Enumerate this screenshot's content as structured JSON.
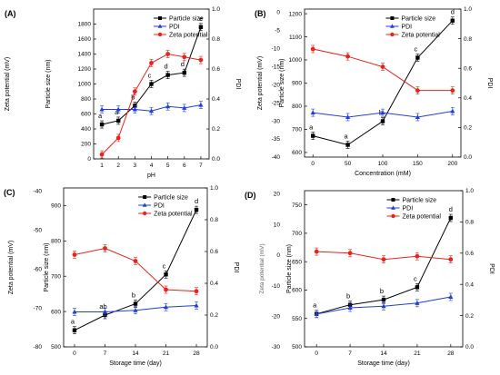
{
  "chart_data": [
    {
      "type": "line",
      "panel_label": "(A)",
      "xlabel": "pH",
      "ylabel_outer": "Zeta potential (mV)",
      "ylabel_inner": "Particle size (nm)",
      "ylabel_right": "PDI",
      "x": [
        1,
        2,
        3,
        4,
        5,
        6,
        7
      ],
      "xlim": [
        0.5,
        7.5
      ],
      "xticks": [
        "1",
        "2",
        "3",
        "4",
        "5",
        "6",
        "7"
      ],
      "left_axis": {
        "lim": [
          0,
          2000
        ],
        "ticks": [
          "0",
          "200",
          "400",
          "600",
          "800",
          "1000",
          "1200",
          "1400",
          "1600",
          "1800"
        ],
        "tick_values": [
          0,
          200,
          400,
          600,
          800,
          1000,
          1200,
          1400,
          1600,
          1800
        ]
      },
      "right_axis": {
        "lim": [
          0,
          1.0
        ],
        "ticks": [
          "0.0",
          "0.2",
          "0.4",
          "0.6",
          "0.8",
          "1.0"
        ],
        "tick_values": [
          0,
          0.2,
          0.4,
          0.6,
          0.8,
          1.0
        ]
      },
      "series": [
        {
          "name": "Particle size",
          "color": "#000000",
          "marker": "square",
          "axis": "left",
          "values": [
            460,
            510,
            710,
            1000,
            1120,
            1150,
            1760
          ],
          "letters": [
            "a",
            "a",
            "b",
            "c",
            "d",
            "d",
            "e"
          ]
        },
        {
          "name": "PDI",
          "color": "#1f3fd6",
          "marker": "triangle",
          "axis": "right",
          "values": [
            0.33,
            0.33,
            0.33,
            0.32,
            0.35,
            0.34,
            0.36
          ]
        },
        {
          "name": "Zeta potential",
          "color": "#e8231c",
          "marker": "circle",
          "axis": "right",
          "values": [
            0.03,
            0.14,
            0.45,
            0.64,
            0.7,
            0.68,
            0.66
          ]
        }
      ],
      "legend_placement": "top-center"
    },
    {
      "type": "line",
      "panel_label": "(B)",
      "xlabel": "Concentration (mM)",
      "ylabel_outer": "Zeta potential (mV)",
      "ylabel_inner": "Particle size (nm)",
      "ylabel_right": "PDI",
      "x": [
        0,
        50,
        100,
        150,
        200
      ],
      "xlim": [
        -12,
        212
      ],
      "xticks": [
        "0",
        "50",
        "100",
        "150",
        "200"
      ],
      "outer_axis": {
        "ticks": [
          "-40",
          "-35",
          "-30",
          "-25",
          "-20",
          "-15",
          "-10",
          "-5",
          "0"
        ]
      },
      "left_axis": {
        "lim": [
          580,
          1220
        ],
        "ticks": [
          "600",
          "700",
          "800",
          "900",
          "1000",
          "1100",
          "1200"
        ],
        "tick_values": [
          600,
          700,
          800,
          900,
          1000,
          1100,
          1200
        ]
      },
      "right_axis": {
        "lim": [
          0,
          1.0
        ],
        "ticks": [
          "0.0",
          "0.2",
          "0.4",
          "0.6",
          "0.8",
          "1.0"
        ],
        "tick_values": [
          0,
          0.2,
          0.4,
          0.6,
          0.8,
          1.0
        ]
      },
      "series": [
        {
          "name": "Particle size",
          "color": "#000000",
          "marker": "square",
          "axis": "left",
          "values": [
            672,
            633,
            735,
            1010,
            1170
          ],
          "letters": [
            "a",
            "a",
            "b",
            "c",
            "d"
          ]
        },
        {
          "name": "PDI",
          "color": "#1f3fd6",
          "marker": "triangle",
          "axis": "right",
          "values": [
            0.3,
            0.27,
            0.3,
            0.27,
            0.31
          ]
        },
        {
          "name": "Zeta potential",
          "color": "#e8231c",
          "marker": "circle",
          "axis": "right",
          "values": [
            0.73,
            0.68,
            0.61,
            0.45,
            0.45
          ]
        }
      ],
      "legend_placement": "top-center"
    },
    {
      "type": "line",
      "panel_label": "(C)",
      "xlabel": "Storage time (day)",
      "ylabel_outer": "Zeta potential (mV)",
      "ylabel_inner": "Particle size (nm)",
      "ylabel_right": "PDI",
      "x": [
        0,
        7,
        14,
        21,
        28
      ],
      "xlim": [
        -2.5,
        30.5
      ],
      "xticks": [
        "0",
        "7",
        "14",
        "21",
        "28"
      ],
      "outer_axis": {
        "ticks": [
          "-80",
          "-70",
          "-60",
          "-50",
          "-40"
        ]
      },
      "left_axis": {
        "lim": [
          500,
          950
        ],
        "ticks": [
          "500",
          "600",
          "700",
          "800",
          "900"
        ],
        "tick_values": [
          500,
          600,
          700,
          800,
          900
        ]
      },
      "right_axis": {
        "lim": [
          0,
          1.0
        ],
        "ticks": [
          "0.0",
          "0.2",
          "0.4",
          "0.6",
          "0.8",
          "1.0"
        ],
        "tick_values": [
          0,
          0.2,
          0.4,
          0.6,
          0.8,
          1.0
        ]
      },
      "series": [
        {
          "name": "Particle size",
          "color": "#000000",
          "marker": "square",
          "axis": "left",
          "values": [
            547,
            590,
            622,
            705,
            888
          ],
          "letters": [
            "a",
            "ab",
            "b",
            "c",
            "d"
          ]
        },
        {
          "name": "PDI",
          "color": "#1f3fd6",
          "marker": "triangle",
          "axis": "right",
          "values": [
            0.22,
            0.22,
            0.23,
            0.25,
            0.26
          ]
        },
        {
          "name": "Zeta potential",
          "color": "#e8231c",
          "marker": "circle",
          "axis": "right",
          "values": [
            0.58,
            0.62,
            0.54,
            0.36,
            0.35
          ]
        }
      ],
      "legend_placement": "top-center"
    },
    {
      "type": "line",
      "panel_label": "(D)",
      "xlabel": "Storage time (day)",
      "ylabel_outer": "Zeta potential (mV)",
      "ylabel_inner": "Particle size (nm)",
      "ylabel_right": "PDI",
      "x": [
        0,
        7,
        14,
        21,
        28
      ],
      "xlim": [
        -2.5,
        30.5
      ],
      "xticks": [
        "0",
        "7",
        "14",
        "21",
        "28"
      ],
      "outer_axis": {
        "ticks": [
          "-30",
          "-20",
          "-10",
          "0",
          "10",
          "20"
        ]
      },
      "left_axis": {
        "lim": [
          500,
          775
        ],
        "ticks": [
          "500",
          "550",
          "600",
          "650",
          "700",
          "750"
        ],
        "tick_values": [
          500,
          550,
          600,
          650,
          700,
          750
        ]
      },
      "right_axis": {
        "lim": [
          0,
          1.0
        ],
        "ticks": [
          "0.0",
          "0.2",
          "0.4",
          "0.6",
          "0.8",
          "1.0"
        ],
        "tick_values": [
          0,
          0.2,
          0.4,
          0.6,
          0.8,
          1.0
        ]
      },
      "series": [
        {
          "name": "Particle size",
          "color": "#000000",
          "marker": "square",
          "axis": "left",
          "values": [
            558,
            574,
            583,
            605,
            727
          ],
          "letters": [
            "a",
            "b",
            "b",
            "c",
            "d"
          ]
        },
        {
          "name": "PDI",
          "color": "#1f3fd6",
          "marker": "triangle",
          "axis": "right",
          "values": [
            0.21,
            0.25,
            0.26,
            0.28,
            0.32
          ]
        },
        {
          "name": "Zeta potential",
          "color": "#e8231c",
          "marker": "circle",
          "axis": "right",
          "values": [
            0.61,
            0.6,
            0.56,
            0.58,
            0.56
          ]
        }
      ],
      "legend_placement": "top-center"
    }
  ]
}
